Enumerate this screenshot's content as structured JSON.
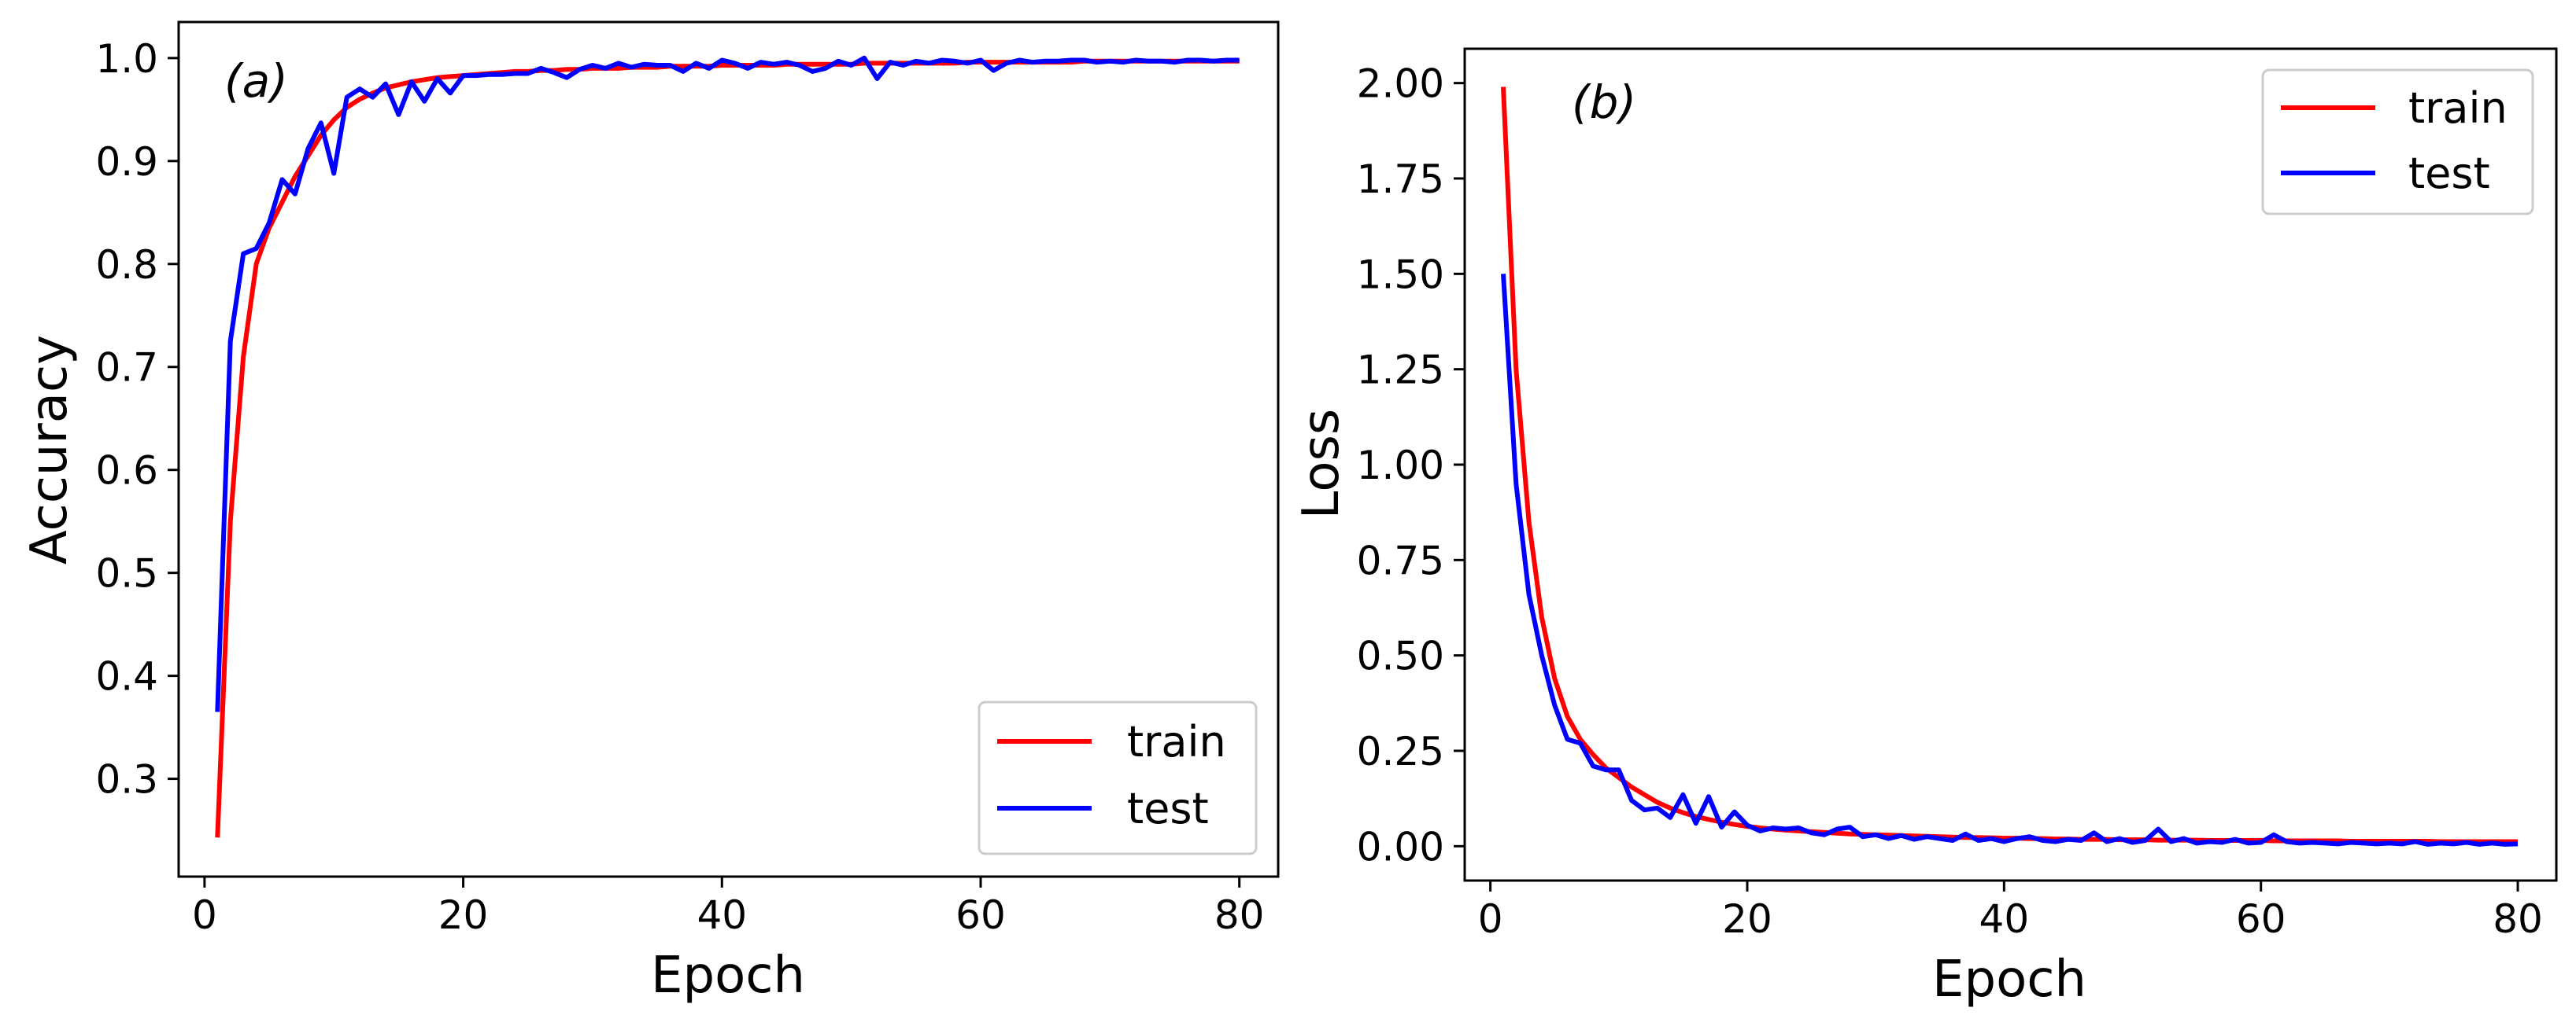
{
  "colors": {
    "train": "#ff0000",
    "test": "#0000ff"
  },
  "chart_data": [
    {
      "type": "line",
      "panel_label": "a",
      "xlabel": "Epoch",
      "ylabel": "Accuracy",
      "xlim": [
        -2,
        83
      ],
      "ylim": [
        0.205,
        1.035
      ],
      "xticks": [
        0,
        20,
        40,
        60,
        80
      ],
      "yticks": [
        0.3,
        0.4,
        0.5,
        0.6,
        0.7,
        0.8,
        0.9,
        1.0
      ],
      "ytick_labels": [
        "0.3",
        "0.4",
        "0.5",
        "0.6",
        "0.7",
        "0.8",
        "0.9",
        "1.0"
      ],
      "legend_position": "lower-right",
      "series": [
        {
          "name": "train",
          "x": [
            1,
            2,
            3,
            4,
            5,
            6,
            7,
            8,
            9,
            10,
            11,
            12,
            13,
            14,
            15,
            16,
            17,
            18,
            19,
            20,
            21,
            22,
            23,
            24,
            25,
            26,
            27,
            28,
            29,
            30,
            31,
            32,
            33,
            34,
            35,
            36,
            37,
            38,
            39,
            40,
            41,
            42,
            43,
            44,
            45,
            46,
            47,
            48,
            49,
            50,
            51,
            52,
            53,
            54,
            55,
            56,
            57,
            58,
            59,
            60,
            61,
            62,
            63,
            64,
            65,
            66,
            67,
            68,
            69,
            70,
            71,
            72,
            73,
            74,
            75,
            76,
            77,
            78,
            79,
            80
          ],
          "values": [
            0.243,
            0.55,
            0.71,
            0.8,
            0.835,
            0.86,
            0.885,
            0.905,
            0.925,
            0.94,
            0.952,
            0.96,
            0.966,
            0.971,
            0.974,
            0.977,
            0.979,
            0.981,
            0.982,
            0.983,
            0.984,
            0.985,
            0.986,
            0.987,
            0.987,
            0.988,
            0.988,
            0.989,
            0.989,
            0.99,
            0.99,
            0.99,
            0.991,
            0.991,
            0.991,
            0.992,
            0.992,
            0.992,
            0.992,
            0.993,
            0.993,
            0.993,
            0.993,
            0.993,
            0.994,
            0.994,
            0.994,
            0.994,
            0.994,
            0.994,
            0.995,
            0.995,
            0.995,
            0.995,
            0.995,
            0.995,
            0.995,
            0.995,
            0.996,
            0.996,
            0.996,
            0.996,
            0.996,
            0.996,
            0.996,
            0.996,
            0.996,
            0.997,
            0.997,
            0.997,
            0.997,
            0.997,
            0.997,
            0.997,
            0.997,
            0.997,
            0.997,
            0.997,
            0.997,
            0.997
          ]
        },
        {
          "name": "test",
          "x": [
            1,
            2,
            3,
            4,
            5,
            6,
            7,
            8,
            9,
            10,
            11,
            12,
            13,
            14,
            15,
            16,
            17,
            18,
            19,
            20,
            21,
            22,
            23,
            24,
            25,
            26,
            27,
            28,
            29,
            30,
            31,
            32,
            33,
            34,
            35,
            36,
            37,
            38,
            39,
            40,
            41,
            42,
            43,
            44,
            45,
            46,
            47,
            48,
            49,
            50,
            51,
            52,
            53,
            54,
            55,
            56,
            57,
            58,
            59,
            60,
            61,
            62,
            63,
            64,
            65,
            66,
            67,
            68,
            69,
            70,
            71,
            72,
            73,
            74,
            75,
            76,
            77,
            78,
            79,
            80
          ],
          "values": [
            0.365,
            0.725,
            0.81,
            0.815,
            0.84,
            0.882,
            0.868,
            0.912,
            0.937,
            0.888,
            0.962,
            0.97,
            0.962,
            0.975,
            0.945,
            0.977,
            0.958,
            0.98,
            0.966,
            0.983,
            0.983,
            0.984,
            0.984,
            0.985,
            0.985,
            0.99,
            0.986,
            0.981,
            0.989,
            0.993,
            0.99,
            0.995,
            0.991,
            0.994,
            0.993,
            0.993,
            0.987,
            0.995,
            0.99,
            0.998,
            0.995,
            0.99,
            0.996,
            0.994,
            0.996,
            0.993,
            0.987,
            0.99,
            0.997,
            0.993,
            1.0,
            0.98,
            0.996,
            0.993,
            0.997,
            0.995,
            0.998,
            0.997,
            0.995,
            0.998,
            0.988,
            0.995,
            0.998,
            0.996,
            0.997,
            0.997,
            0.998,
            0.998,
            0.996,
            0.997,
            0.996,
            0.998,
            0.997,
            0.997,
            0.996,
            0.998,
            0.998,
            0.997,
            0.998,
            0.998
          ]
        }
      ]
    },
    {
      "type": "line",
      "panel_label": "b",
      "xlabel": "Epoch",
      "ylabel": "Loss",
      "xlim": [
        -2,
        83
      ],
      "ylim": [
        -0.09,
        2.09
      ],
      "xticks": [
        0,
        20,
        40,
        60,
        80
      ],
      "yticks": [
        0.0,
        0.25,
        0.5,
        0.75,
        1.0,
        1.25,
        1.5,
        1.75,
        2.0
      ],
      "ytick_labels": [
        "0.00",
        "0.25",
        "0.50",
        "0.75",
        "1.00",
        "1.25",
        "1.50",
        "1.75",
        "2.00"
      ],
      "legend_position": "upper-right",
      "series": [
        {
          "name": "train",
          "x": [
            1,
            2,
            3,
            4,
            5,
            6,
            7,
            8,
            9,
            10,
            11,
            12,
            13,
            14,
            15,
            16,
            17,
            18,
            19,
            20,
            21,
            22,
            23,
            24,
            25,
            26,
            27,
            28,
            29,
            30,
            31,
            32,
            33,
            34,
            35,
            36,
            37,
            38,
            39,
            40,
            41,
            42,
            43,
            44,
            45,
            46,
            47,
            48,
            49,
            50,
            51,
            52,
            53,
            54,
            55,
            56,
            57,
            58,
            59,
            60,
            61,
            62,
            63,
            64,
            65,
            66,
            67,
            68,
            69,
            70,
            71,
            72,
            73,
            74,
            75,
            76,
            77,
            78,
            79,
            80
          ],
          "values": [
            1.99,
            1.25,
            0.85,
            0.6,
            0.44,
            0.34,
            0.28,
            0.24,
            0.205,
            0.18,
            0.155,
            0.135,
            0.115,
            0.1,
            0.088,
            0.078,
            0.07,
            0.063,
            0.057,
            0.052,
            0.048,
            0.045,
            0.042,
            0.04,
            0.038,
            0.036,
            0.034,
            0.032,
            0.031,
            0.03,
            0.029,
            0.028,
            0.027,
            0.026,
            0.025,
            0.024,
            0.023,
            0.023,
            0.022,
            0.021,
            0.021,
            0.02,
            0.02,
            0.019,
            0.019,
            0.018,
            0.018,
            0.018,
            0.017,
            0.017,
            0.017,
            0.016,
            0.016,
            0.016,
            0.016,
            0.015,
            0.015,
            0.015,
            0.015,
            0.015,
            0.014,
            0.014,
            0.014,
            0.014,
            0.014,
            0.014,
            0.013,
            0.013,
            0.013,
            0.013,
            0.013,
            0.013,
            0.013,
            0.012,
            0.012,
            0.012,
            0.012,
            0.012,
            0.012,
            0.012
          ]
        },
        {
          "name": "test",
          "x": [
            1,
            2,
            3,
            4,
            5,
            6,
            7,
            8,
            9,
            10,
            11,
            12,
            13,
            14,
            15,
            16,
            17,
            18,
            19,
            20,
            21,
            22,
            23,
            24,
            25,
            26,
            27,
            28,
            29,
            30,
            31,
            32,
            33,
            34,
            35,
            36,
            37,
            38,
            39,
            40,
            41,
            42,
            43,
            44,
            45,
            46,
            47,
            48,
            49,
            50,
            51,
            52,
            53,
            54,
            55,
            56,
            57,
            58,
            59,
            60,
            61,
            62,
            63,
            64,
            65,
            66,
            67,
            68,
            69,
            70,
            71,
            72,
            73,
            74,
            75,
            76,
            77,
            78,
            79,
            80
          ],
          "values": [
            1.5,
            0.95,
            0.66,
            0.5,
            0.37,
            0.28,
            0.27,
            0.21,
            0.2,
            0.2,
            0.12,
            0.095,
            0.1,
            0.075,
            0.135,
            0.06,
            0.13,
            0.05,
            0.09,
            0.055,
            0.04,
            0.048,
            0.045,
            0.048,
            0.035,
            0.03,
            0.045,
            0.05,
            0.025,
            0.03,
            0.02,
            0.028,
            0.018,
            0.025,
            0.02,
            0.015,
            0.032,
            0.015,
            0.02,
            0.012,
            0.02,
            0.025,
            0.015,
            0.012,
            0.018,
            0.015,
            0.035,
            0.012,
            0.02,
            0.01,
            0.015,
            0.045,
            0.012,
            0.02,
            0.008,
            0.012,
            0.01,
            0.018,
            0.008,
            0.01,
            0.03,
            0.012,
            0.008,
            0.01,
            0.008,
            0.006,
            0.01,
            0.008,
            0.006,
            0.008,
            0.006,
            0.012,
            0.005,
            0.008,
            0.006,
            0.01,
            0.005,
            0.008,
            0.005,
            0.006
          ]
        }
      ]
    }
  ]
}
